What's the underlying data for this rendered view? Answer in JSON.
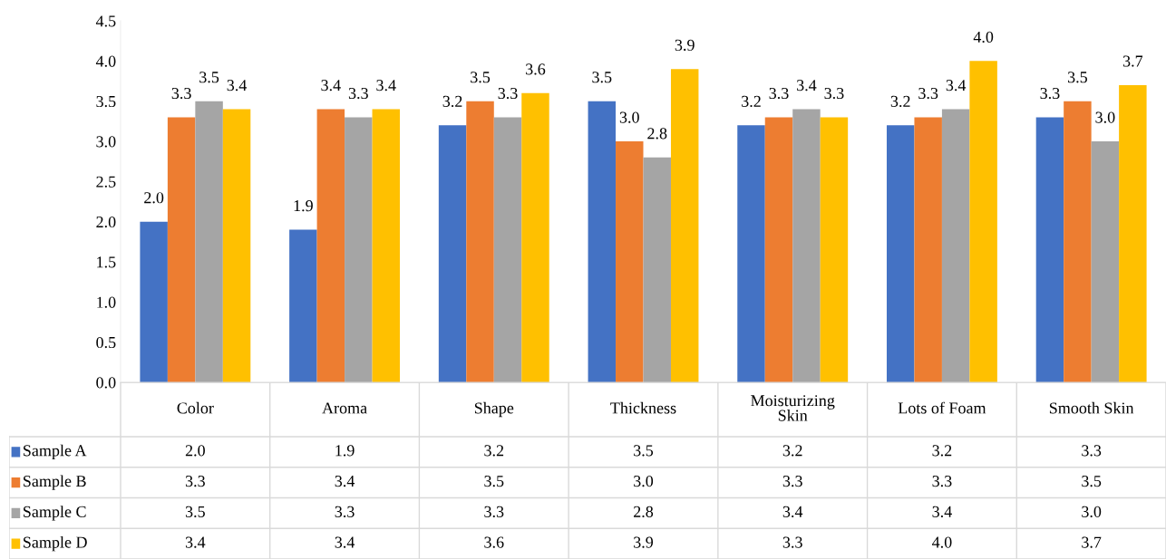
{
  "chart_data": {
    "type": "bar",
    "categories": [
      "Color",
      "Aroma",
      "Shape",
      "Thickness",
      "Moisturizing\nSkin",
      "Lots of Foam",
      "Smooth Skin"
    ],
    "series": [
      {
        "name": "Sample A",
        "color": "#4472c4",
        "values": [
          2.0,
          1.9,
          3.2,
          3.5,
          3.2,
          3.2,
          3.3
        ],
        "value_labels": [
          "2.0",
          "1.9",
          "3.2",
          "3.5",
          "3.2",
          "3.2",
          "3.3"
        ]
      },
      {
        "name": "Sample B",
        "color": "#ed7d31",
        "values": [
          3.3,
          3.4,
          3.5,
          3.0,
          3.3,
          3.3,
          3.5
        ],
        "value_labels": [
          "3.3",
          "3.4",
          "3.5",
          "3.0",
          "3.3",
          "3.3",
          "3.5"
        ]
      },
      {
        "name": "Sample C",
        "color": "#a5a5a5",
        "values": [
          3.5,
          3.3,
          3.3,
          2.8,
          3.4,
          3.4,
          3.0
        ],
        "value_labels": [
          "3.5",
          "3.3",
          "3.3",
          "2.8",
          "3.4",
          "3.4",
          "3.0"
        ]
      },
      {
        "name": "Sample D",
        "color": "#ffc000",
        "values": [
          3.4,
          3.4,
          3.6,
          3.9,
          3.3,
          4.0,
          3.7
        ],
        "value_labels": [
          "3.4",
          "3.4",
          "3.6",
          "3.9",
          "3.3",
          "4.0",
          "3.7"
        ]
      }
    ],
    "ylim": [
      0,
      4.5
    ],
    "yticks": [
      {
        "value": 0,
        "label": "0.0"
      },
      {
        "value": 0.5,
        "label": "0.5"
      },
      {
        "value": 1,
        "label": "1.0"
      },
      {
        "value": 1.5,
        "label": "1.5"
      },
      {
        "value": 2,
        "label": "2.0"
      },
      {
        "value": 2.5,
        "label": "2.5"
      },
      {
        "value": 3,
        "label": "3.0"
      },
      {
        "value": 3.5,
        "label": "3.5"
      },
      {
        "value": 4,
        "label": "4.0"
      },
      {
        "value": 4.5,
        "label": "4.5"
      }
    ],
    "legend": "bottom",
    "grid": false
  }
}
